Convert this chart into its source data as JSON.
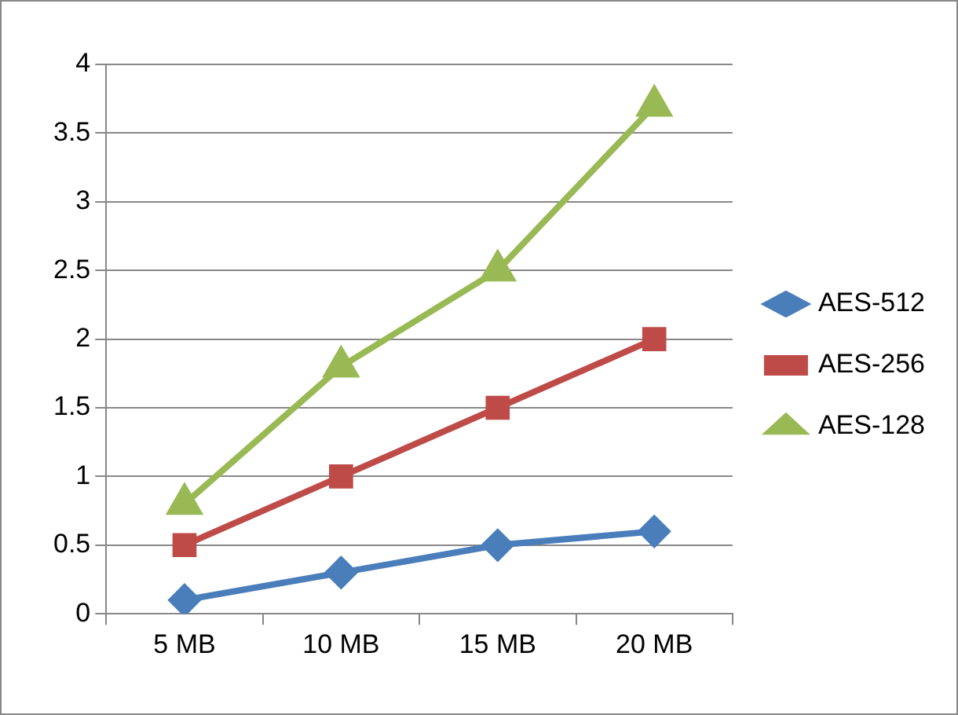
{
  "chart_data": {
    "type": "line",
    "categories": [
      "5 MB",
      "10 MB",
      "15 MB",
      "20 MB"
    ],
    "series": [
      {
        "name": "AES-512",
        "color": "#4a7ebb",
        "marker": "diamond",
        "values": [
          0.1,
          0.3,
          0.5,
          0.6
        ]
      },
      {
        "name": "AES-256",
        "color": "#be4b48",
        "marker": "square",
        "values": [
          0.5,
          1,
          1.5,
          2
        ]
      },
      {
        "name": "AES-128",
        "color": "#98b954",
        "marker": "triangle",
        "values": [
          0.8,
          1.8,
          2.5,
          3.7
        ]
      }
    ],
    "ylim": [
      0,
      4
    ],
    "yticks": [
      0,
      0.5,
      1,
      1.5,
      2,
      2.5,
      3,
      3.5,
      4
    ],
    "grid": "y",
    "legend": "right",
    "line_style": "solid"
  }
}
